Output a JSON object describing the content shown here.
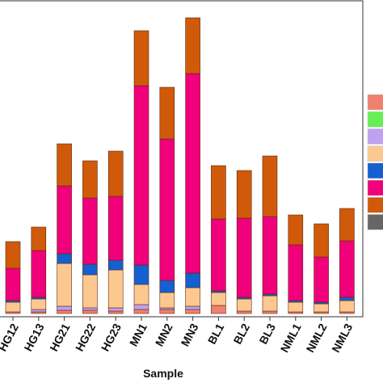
{
  "chart_data": {
    "type": "bar",
    "stacked": true,
    "x_label": "Sample",
    "categories": [
      "HG12",
      "HG13",
      "HG21",
      "HG22",
      "HG23",
      "MN1",
      "MN2",
      "MN3",
      "BL1",
      "BL2",
      "BL3",
      "NML1",
      "NML2",
      "NML3"
    ],
    "ylim": [
      0,
      392
    ],
    "series": [
      {
        "color": "#f08070",
        "values": [
          2,
          2,
          4,
          4,
          3,
          5,
          5,
          5,
          10,
          3,
          3,
          2,
          2,
          2
        ]
      },
      {
        "color": "#66ee55",
        "values": [
          0,
          0,
          0,
          0,
          0,
          0,
          0,
          0,
          0,
          0,
          0,
          0,
          0,
          0
        ]
      },
      {
        "color": "#c0a0f0",
        "values": [
          0,
          3,
          5,
          3,
          4,
          6,
          2,
          4,
          0,
          0,
          0,
          0,
          0,
          0
        ]
      },
      {
        "color": "#fcc890",
        "values": [
          12,
          13,
          53,
          41,
          47,
          25,
          19,
          23,
          16,
          15,
          19,
          12,
          10,
          14
        ]
      },
      {
        "color": "#1560d0",
        "values": [
          2,
          2,
          12,
          13,
          12,
          24,
          15,
          18,
          2,
          2,
          2,
          2,
          2,
          4
        ]
      },
      {
        "color": "#f0007a",
        "values": [
          40,
          58,
          84,
          82,
          79,
          222,
          175,
          247,
          89,
          98,
          96,
          69,
          56,
          70
        ]
      },
      {
        "color": "#d05a0a",
        "values": [
          33,
          29,
          52,
          46,
          56,
          68,
          64,
          69,
          66,
          59,
          75,
          37,
          41,
          40
        ]
      },
      {
        "color": "#666666",
        "values": [
          0,
          0,
          0,
          0,
          0,
          0,
          0,
          0,
          0,
          0,
          0,
          0,
          0,
          0
        ]
      }
    ]
  }
}
